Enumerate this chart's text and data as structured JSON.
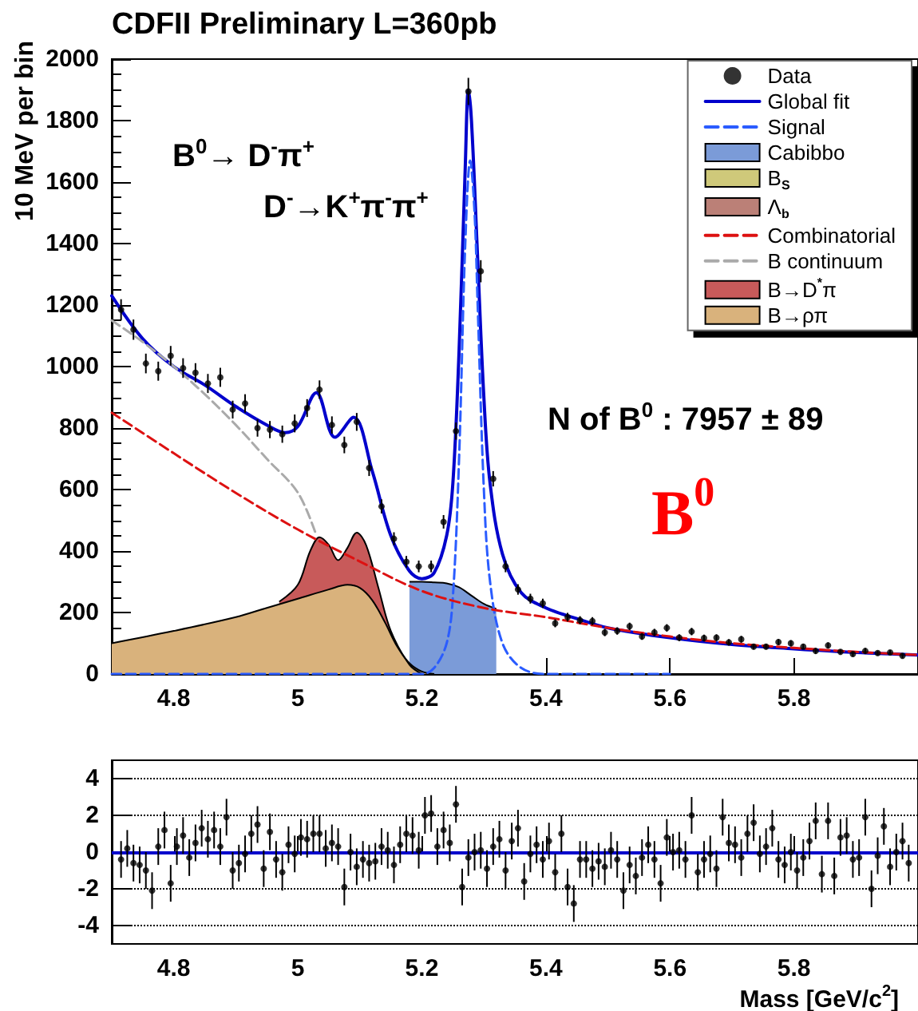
{
  "chart_data": [
    {
      "type": "line",
      "title": "CDFII Preliminary L=360pb",
      "ylabel": "10 MeV per bin",
      "annotations": [
        "B$^{0}$→ D$^{-}$π$^{+}$",
        "D$^{-}$→K$^{+}$π$^{-}$π$^{+}$",
        "N of B$^{0}$ : 7957 ± 89",
        "B$^{0}$"
      ],
      "xlim": [
        4.7,
        6.0
      ],
      "xticks": [
        4.8,
        5,
        5.2,
        5.4,
        5.6,
        5.8
      ],
      "ylim": [
        0,
        2000
      ],
      "yticks": [
        0,
        200,
        400,
        600,
        800,
        1000,
        1200,
        1400,
        1600,
        1800,
        2000
      ],
      "legend": "top right",
      "series": [
        {
          "name": "Data",
          "type": "scatter",
          "marker": "circle",
          "color": "#000000",
          "x": [
            4.715,
            4.735,
            4.755,
            4.775,
            4.795,
            4.815,
            4.835,
            4.855,
            4.875,
            4.895,
            4.915,
            4.935,
            4.955,
            4.975,
            4.995,
            5.015,
            5.035,
            5.055,
            5.075,
            5.095,
            5.115,
            5.135,
            5.155,
            5.175,
            5.195,
            5.215,
            5.235,
            5.255,
            5.275,
            5.295,
            5.315,
            5.335,
            5.355,
            5.375,
            5.395,
            5.415,
            5.435,
            5.455,
            5.475,
            5.495,
            5.515,
            5.535,
            5.555,
            5.575,
            5.595,
            5.615,
            5.635,
            5.655,
            5.675,
            5.695,
            5.715,
            5.735,
            5.755,
            5.775,
            5.795,
            5.815,
            5.835,
            5.855,
            5.875,
            5.895,
            5.915,
            5.935,
            5.955,
            5.975
          ],
          "values": [
            1185,
            1120,
            1010,
            985,
            1035,
            995,
            980,
            945,
            965,
            860,
            880,
            800,
            795,
            780,
            815,
            865,
            925,
            810,
            745,
            820,
            670,
            545,
            440,
            365,
            350,
            350,
            495,
            790,
            1895,
            1310,
            635,
            350,
            275,
            245,
            230,
            165,
            185,
            175,
            172,
            135,
            140,
            155,
            122,
            135,
            150,
            118,
            138,
            117,
            118,
            103,
            113,
            89,
            89,
            104,
            100,
            89,
            75,
            93,
            72,
            65,
            75,
            68,
            70,
            59
          ],
          "errors": [
            34,
            33,
            32,
            31,
            32,
            32,
            31,
            31,
            31,
            29,
            30,
            28,
            28,
            28,
            29,
            29,
            30,
            28,
            27,
            29,
            26,
            23,
            21,
            19,
            19,
            19,
            22,
            28,
            44,
            36,
            25,
            19,
            17,
            16,
            15,
            13,
            14,
            13,
            13,
            12,
            12,
            12,
            11,
            12,
            12,
            11,
            12,
            11,
            11,
            10,
            11,
            9,
            9,
            10,
            10,
            9,
            9,
            10,
            8,
            8,
            9,
            8,
            8,
            8
          ]
        },
        {
          "name": "Global fit",
          "color": "#0000cc",
          "x": [
            4.7,
            4.75,
            4.8,
            4.85,
            4.9,
            4.95,
            4.98,
            5.0,
            5.03,
            5.06,
            5.09,
            5.12,
            5.15,
            5.18,
            5.2,
            5.22,
            5.24,
            5.25,
            5.26,
            5.27,
            5.275,
            5.28,
            5.29,
            5.3,
            5.31,
            5.33,
            5.36,
            5.4,
            5.45,
            5.5,
            5.6,
            5.7,
            5.8,
            5.9,
            6.0
          ],
          "values": [
            1230,
            1090,
            1000,
            940,
            870,
            810,
            785,
            805,
            915,
            770,
            835,
            660,
            450,
            335,
            310,
            330,
            450,
            620,
            1050,
            1650,
            1900,
            1800,
            1350,
            900,
            620,
            390,
            265,
            215,
            180,
            150,
            118,
            96,
            82,
            70,
            62
          ]
        },
        {
          "name": "Signal",
          "line_style": "dashed",
          "color": "#2a5cff",
          "x": [
            4.7,
            4.9,
            5.1,
            5.2,
            5.22,
            5.24,
            5.25,
            5.26,
            5.27,
            5.278,
            5.285,
            5.29,
            5.3,
            5.31,
            5.33,
            5.36,
            5.4,
            5.5,
            5.6
          ],
          "values": [
            0,
            0,
            0,
            0,
            20,
            100,
            250,
            700,
            1400,
            1670,
            1500,
            1200,
            600,
            300,
            100,
            20,
            0,
            0,
            0
          ]
        },
        {
          "name": "Cabibbo",
          "type": "area",
          "color": "#7b9bd8",
          "x": [
            5.18,
            5.2,
            5.22,
            5.24,
            5.26,
            5.28,
            5.3,
            5.32
          ],
          "values": [
            300,
            300,
            298,
            295,
            282,
            255,
            228,
            212
          ]
        },
        {
          "name": "B$_{S}$",
          "type": "area",
          "color": "#cfc97a"
        },
        {
          "name": "Λ$_{b}$",
          "type": "area",
          "color": "#bb8077"
        },
        {
          "name": "Combinatorial",
          "line_style": "dashed",
          "color": "#dd1111",
          "x": [
            4.7,
            4.8,
            4.9,
            5.0,
            5.1,
            5.2,
            5.3,
            5.4,
            5.5,
            5.6,
            5.7,
            5.8,
            5.9,
            6.0
          ],
          "values": [
            850,
            718,
            589,
            470,
            366,
            270,
            215,
            185,
            150,
            122,
            100,
            85,
            72,
            62
          ]
        },
        {
          "name": "B continuum",
          "line_style": "dashed",
          "color": "#aaaaaa",
          "x": [
            4.7,
            4.75,
            4.8,
            4.85,
            4.9,
            4.95,
            5.0,
            5.03
          ],
          "values": [
            1150,
            1080,
            1000,
            910,
            810,
            700,
            590,
            450
          ]
        },
        {
          "name": "B→D$^{*}$π",
          "type": "area",
          "color": "#c85a5a",
          "x": [
            4.97,
            5.0,
            5.02,
            5.035,
            5.05,
            5.065,
            5.08,
            5.095,
            5.11,
            5.13,
            5.15,
            5.18,
            5.2
          ],
          "values": [
            235,
            290,
            400,
            445,
            420,
            370,
            410,
            460,
            420,
            280,
            140,
            30,
            0
          ]
        },
        {
          "name": "B→ρπ",
          "type": "area",
          "color": "#d9b27c",
          "x": [
            4.7,
            4.8,
            4.9,
            4.95,
            5.0,
            5.05,
            5.08,
            5.1,
            5.12,
            5.14,
            5.16,
            5.18,
            5.2,
            5.22
          ],
          "values": [
            100,
            140,
            185,
            215,
            245,
            275,
            290,
            280,
            240,
            170,
            90,
            35,
            8,
            0
          ]
        }
      ]
    },
    {
      "type": "scatter",
      "xlabel": "Mass [GeV/c$^{2}$]",
      "xlim": [
        4.7,
        6.0
      ],
      "xticks": [
        4.8,
        5,
        5.2,
        5.4,
        5.6,
        5.8
      ],
      "ylim": [
        -5,
        5
      ],
      "yticks": [
        -4,
        -2,
        0,
        2,
        4
      ],
      "grid": "y",
      "ref_lines": [
        {
          "axis": "y",
          "value": 0,
          "color": "#0000cc"
        }
      ],
      "series": [
        {
          "marker": "circle",
          "color": "#000000",
          "x": [
            4.715,
            4.725,
            4.735,
            4.745,
            4.755,
            4.765,
            4.775,
            4.785,
            4.795,
            4.805,
            4.815,
            4.825,
            4.835,
            4.845,
            4.855,
            4.865,
            4.875,
            4.885,
            4.895,
            4.905,
            4.915,
            4.925,
            4.935,
            4.945,
            4.955,
            4.965,
            4.975,
            4.985,
            4.995,
            5.005,
            5.015,
            5.025,
            5.035,
            5.045,
            5.055,
            5.065,
            5.075,
            5.085,
            5.095,
            5.105,
            5.115,
            5.125,
            5.135,
            5.145,
            5.155,
            5.165,
            5.175,
            5.185,
            5.195,
            5.205,
            5.215,
            5.225,
            5.235,
            5.245,
            5.255,
            5.265,
            5.275,
            5.285,
            5.295,
            5.305,
            5.315,
            5.325,
            5.335,
            5.345,
            5.355,
            5.365,
            5.375,
            5.385,
            5.395,
            5.405,
            5.415,
            5.425,
            5.435,
            5.445,
            5.455,
            5.465,
            5.475,
            5.485,
            5.495,
            5.505,
            5.515,
            5.525,
            5.535,
            5.545,
            5.555,
            5.565,
            5.575,
            5.585,
            5.595,
            5.605,
            5.615,
            5.625,
            5.635,
            5.645,
            5.655,
            5.665,
            5.675,
            5.685,
            5.695,
            5.705,
            5.715,
            5.725,
            5.735,
            5.745,
            5.755,
            5.765,
            5.775,
            5.785,
            5.795,
            5.805,
            5.815,
            5.825,
            5.835,
            5.845,
            5.855,
            5.865,
            5.875,
            5.885,
            5.895,
            5.905,
            5.915,
            5.925,
            5.935,
            5.945,
            5.955,
            5.965,
            5.975,
            5.985
          ],
          "values": [
            -0.4,
            0.2,
            -0.6,
            -0.7,
            -1.0,
            -2.1,
            0.3,
            1.2,
            -1.7,
            0.3,
            0.9,
            -0.3,
            0.5,
            1.3,
            0.7,
            1.2,
            0.3,
            1.9,
            -1.0,
            -0.6,
            -0.1,
            1.0,
            1.5,
            -0.9,
            1.1,
            -0.4,
            -1.1,
            0.4,
            -0.1,
            0.8,
            0.7,
            1.0,
            1.0,
            0.2,
            0.5,
            0.3,
            -1.9,
            0,
            -0.8,
            -0.4,
            -0.6,
            -0.5,
            0.3,
            0.1,
            -0.7,
            0.4,
            1.0,
            0.9,
            0.1,
            2.0,
            2.1,
            0.3,
            1.2,
            0.5,
            2.6,
            -1.9,
            -0.3,
            0,
            0.1,
            -0.9,
            0.3,
            0.7,
            -1.0,
            0.6,
            1.3,
            -1.6,
            -0.1,
            0.4,
            -0.4,
            0.6,
            -1.1,
            1.0,
            -1.9,
            -2.8,
            -0.4,
            -0.4,
            -0.9,
            -0.5,
            -0.8,
            0.1,
            -0.4,
            -2.1,
            -0.7,
            -1.3,
            -0.3,
            0.4,
            -0.4,
            -1.7,
            0.8,
            0,
            0.1,
            -0.4,
            2.0,
            -1.1,
            -0.4,
            -0.1,
            -0.9,
            1.9,
            0.5,
            0.4,
            -0.3,
            1.0,
            1.6,
            -0.1,
            0.3,
            1.3,
            -0.4,
            -0.7,
            0,
            -1.0,
            -0.3,
            0.6,
            1.7,
            -1.2,
            1.7,
            -1.3,
            0.8,
            0.9,
            -0.4,
            -0.3,
            1.9,
            -2.0,
            -0.2,
            1.4,
            -0.8,
            0,
            0.6,
            -0.6
          ],
          "errors": [
            1,
            1,
            1,
            1,
            1,
            1,
            1,
            1,
            1,
            1,
            1,
            1,
            1,
            1,
            1,
            1,
            1,
            1,
            1,
            1,
            1,
            1,
            1,
            1,
            1,
            1,
            1,
            1,
            1,
            1,
            1,
            1,
            1,
            1,
            1,
            1,
            1,
            1,
            1,
            1,
            1,
            1,
            1,
            1,
            1,
            1,
            1,
            1,
            1,
            1,
            1,
            1,
            1,
            1,
            1,
            1,
            1,
            1,
            1,
            1,
            1,
            1,
            1,
            1,
            1,
            1,
            1,
            1,
            1,
            1,
            1,
            1,
            1,
            1,
            1,
            1,
            1,
            1,
            1,
            1,
            1,
            1,
            1,
            1,
            1,
            1,
            1,
            1,
            1,
            1,
            1,
            1,
            1,
            1,
            1,
            1,
            1,
            1,
            1,
            1,
            1,
            1,
            1,
            1,
            1,
            1,
            1,
            1,
            1,
            1,
            1,
            1,
            1,
            1,
            1,
            1,
            1,
            1,
            1,
            1,
            1,
            1,
            1,
            1,
            1,
            1,
            1,
            1
          ]
        }
      ]
    }
  ]
}
